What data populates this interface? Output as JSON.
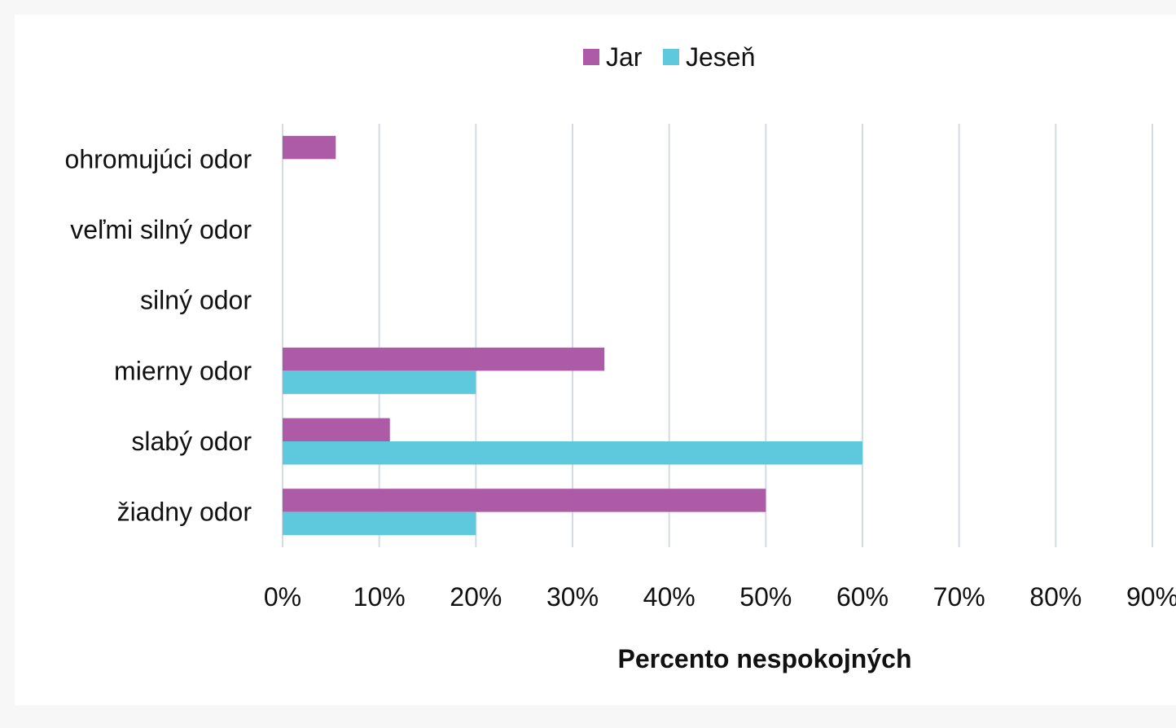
{
  "chart_data": {
    "type": "bar",
    "orientation": "horizontal",
    "categories": [
      "ohromujúci odor",
      "veľmi silný odor",
      "silný odor",
      "mierny odor",
      "slabý odor",
      "žiadny odor"
    ],
    "series": [
      {
        "name": "Jar",
        "color": "#ad5aa7",
        "values": [
          5.5,
          0,
          0,
          33.3,
          11.1,
          50
        ]
      },
      {
        "name": "Jeseň",
        "color": "#5ec9dc",
        "values": [
          0,
          0,
          0,
          20,
          60,
          20
        ]
      }
    ],
    "xlabel": "Percento nespokojných",
    "ylabel": "",
    "xlim": [
      0,
      90
    ],
    "tick_step": 10,
    "tick_labels": [
      "0%",
      "10%",
      "20%",
      "30%",
      "40%",
      "50%",
      "60%",
      "70%",
      "80%",
      "90%"
    ],
    "grid": "vertical",
    "grid_color": "#d5dbe3",
    "legend_position": "top"
  }
}
